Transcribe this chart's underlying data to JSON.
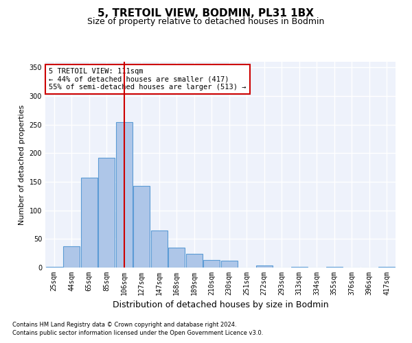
{
  "title1": "5, TRETOIL VIEW, BODMIN, PL31 1BX",
  "title2": "Size of property relative to detached houses in Bodmin",
  "xlabel": "Distribution of detached houses by size in Bodmin",
  "ylabel": "Number of detached properties",
  "categories": [
    "25sqm",
    "44sqm",
    "65sqm",
    "85sqm",
    "106sqm",
    "127sqm",
    "147sqm",
    "168sqm",
    "189sqm",
    "210sqm",
    "230sqm",
    "251sqm",
    "272sqm",
    "293sqm",
    "313sqm",
    "334sqm",
    "355sqm",
    "376sqm",
    "396sqm",
    "417sqm"
  ],
  "values": [
    1,
    37,
    157,
    192,
    255,
    143,
    65,
    35,
    24,
    13,
    12,
    0,
    4,
    0,
    1,
    0,
    1,
    0,
    0,
    1
  ],
  "bar_color": "#aec6e8",
  "bar_edge_color": "#5b9bd5",
  "ref_line_x": 4,
  "ref_line_color": "#cc0000",
  "annotation_text": "5 TRETOIL VIEW: 111sqm\n← 44% of detached houses are smaller (417)\n55% of semi-detached houses are larger (513) →",
  "annotation_box_color": "#ffffff",
  "annotation_box_edge": "#cc0000",
  "ylim": [
    0,
    360
  ],
  "yticks": [
    0,
    50,
    100,
    150,
    200,
    250,
    300,
    350
  ],
  "footer_line1": "Contains HM Land Registry data © Crown copyright and database right 2024.",
  "footer_line2": "Contains public sector information licensed under the Open Government Licence v3.0.",
  "bg_color": "#eef2fb",
  "grid_color": "#ffffff",
  "title1_fontsize": 11,
  "title2_fontsize": 9,
  "tick_label_fontsize": 7,
  "ylabel_fontsize": 8,
  "xlabel_fontsize": 9,
  "annotation_fontsize": 7.5,
  "footer_fontsize": 6
}
